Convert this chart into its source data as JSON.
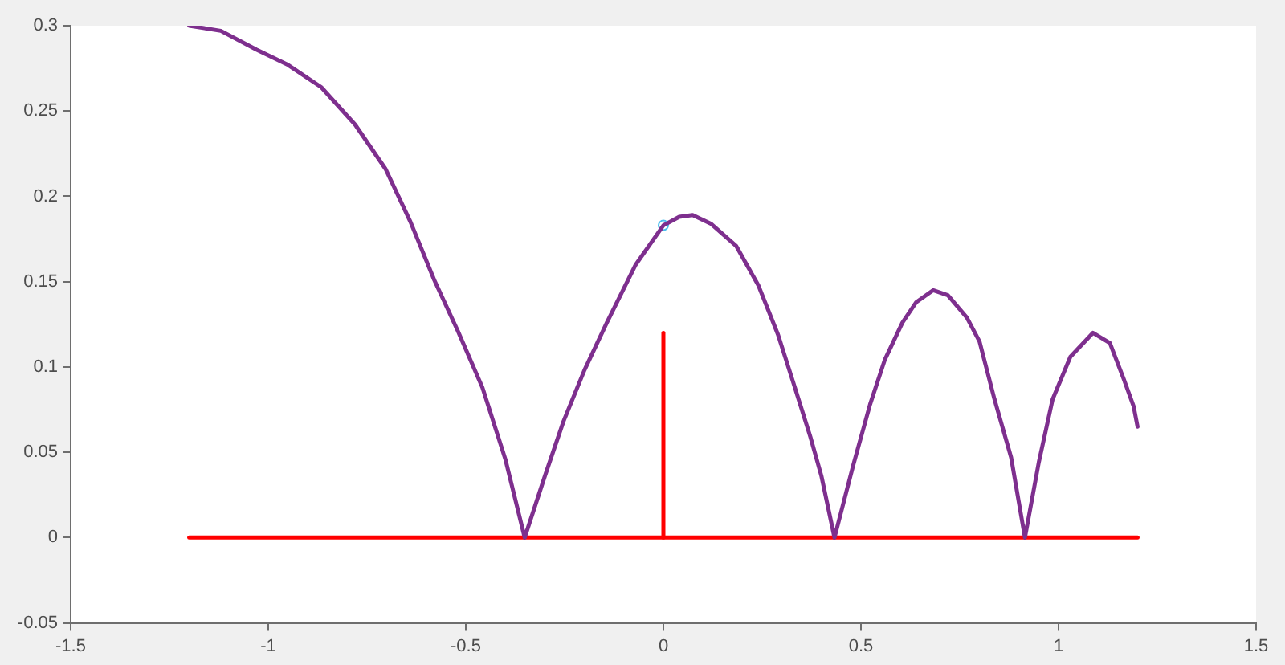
{
  "chart_data": {
    "type": "line",
    "xlim": [
      -1.5,
      1.5
    ],
    "ylim": [
      -0.05,
      0.3
    ],
    "xticks": [
      -1.5,
      -1,
      -0.5,
      0,
      0.5,
      1,
      1.5
    ],
    "yticks": [
      -0.05,
      0,
      0.05,
      0.1,
      0.15,
      0.2,
      0.25,
      0.3
    ],
    "grid": false,
    "legend": false,
    "line_style": "solid",
    "series": [
      {
        "color": "#7e2f8e",
        "marker": "none",
        "x": [
          -1.2,
          -1.12,
          -1.03,
          -0.95,
          -0.866,
          -0.78,
          -0.703,
          -0.64,
          -0.58,
          -0.52,
          -0.458,
          -0.4,
          -0.351,
          -0.3,
          -0.253,
          -0.2,
          -0.143,
          -0.07,
          0,
          0.04,
          0.074,
          0.12,
          0.184,
          0.24,
          0.29,
          0.33,
          0.372,
          0.4,
          0.433,
          0.48,
          0.523,
          0.56,
          0.605,
          0.64,
          0.683,
          0.72,
          0.768,
          0.8,
          0.838,
          0.88,
          0.915,
          0.95,
          0.985,
          1.03,
          1.087,
          1.13,
          1.165,
          1.19,
          1.2
        ],
        "values": [
          0.3,
          0.297,
          0.286,
          0.277,
          0.264,
          0.242,
          0.216,
          0.185,
          0.151,
          0.121,
          0.088,
          0.046,
          0,
          0.036,
          0.068,
          0.098,
          0.126,
          0.16,
          0.183,
          0.188,
          0.189,
          0.184,
          0.171,
          0.148,
          0.119,
          0.09,
          0.059,
          0.036,
          0,
          0.042,
          0.078,
          0.104,
          0.126,
          0.138,
          0.145,
          0.142,
          0.129,
          0.115,
          0.081,
          0.047,
          0,
          0.044,
          0.081,
          0.106,
          0.12,
          0.114,
          0.093,
          0.077,
          0.065
        ]
      },
      {
        "color": "#ff0000",
        "marker": "none",
        "x": [
          -1.2,
          1.2
        ],
        "values": [
          0,
          0
        ]
      },
      {
        "color": "#ff0000",
        "marker": "none",
        "x": [
          0,
          0
        ],
        "values": [
          0,
          0.12
        ]
      },
      {
        "type": "scatter",
        "color": "#4dbeee",
        "marker": "circle",
        "x": [
          0
        ],
        "values": [
          0.183
        ]
      }
    ]
  }
}
